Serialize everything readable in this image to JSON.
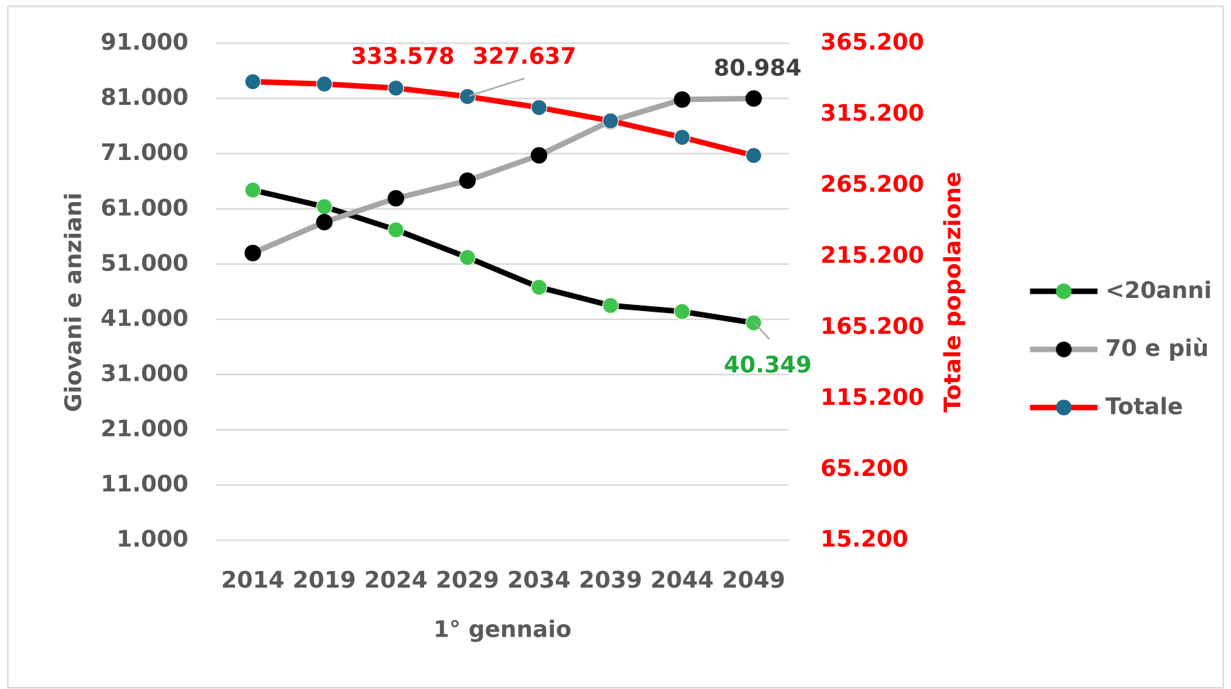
{
  "chart_data": {
    "type": "line",
    "x_label": "1° gennaio",
    "y_label": "Giovani e anziani",
    "y2_label": "Totale popolazione",
    "categories": [
      "2014",
      "2019",
      "2024",
      "2029",
      "2034",
      "2039",
      "2044",
      "2049"
    ],
    "ylim": [
      1000,
      91000
    ],
    "yticks": [
      {
        "value": 1000,
        "label": "1.000"
      },
      {
        "value": 11000,
        "label": "11.000"
      },
      {
        "value": 21000,
        "label": "21.000"
      },
      {
        "value": 31000,
        "label": "31.000"
      },
      {
        "value": 41000,
        "label": "41.000"
      },
      {
        "value": 51000,
        "label": "51.000"
      },
      {
        "value": 61000,
        "label": "61.000"
      },
      {
        "value": 71000,
        "label": "71.000"
      },
      {
        "value": 81000,
        "label": "81.000"
      },
      {
        "value": 91000,
        "label": "91.000"
      }
    ],
    "y2lim": [
      15200,
      365200
    ],
    "y2ticks": [
      {
        "value": 15200,
        "label": "15.200"
      },
      {
        "value": 65200,
        "label": "65.200"
      },
      {
        "value": 115200,
        "label": "115.200"
      },
      {
        "value": 165200,
        "label": "165.200"
      },
      {
        "value": 215200,
        "label": "215.200"
      },
      {
        "value": 265200,
        "label": "265.200"
      },
      {
        "value": 315200,
        "label": "315.200"
      },
      {
        "value": 365200,
        "label": "365.200"
      }
    ],
    "grid": true,
    "legend": "right",
    "series": [
      {
        "name": "<20anni",
        "color": "#000000",
        "marker_color": "#3ec44c",
        "label_color": "#1fa83a",
        "values": [
          64400,
          61400,
          57200,
          52200,
          46800,
          43500,
          42400,
          40349
        ],
        "value_labels": [
          null,
          null,
          null,
          null,
          null,
          null,
          null,
          "40.349"
        ]
      },
      {
        "name": "70 e più",
        "color": "#a6a6a6",
        "marker_color": "#000000",
        "label_color": "#404040",
        "values": [
          53000,
          58600,
          62900,
          66100,
          70700,
          76900,
          80800,
          80984
        ],
        "value_labels": [
          null,
          null,
          null,
          null,
          null,
          null,
          null,
          "80.984"
        ]
      },
      {
        "name": "Totale",
        "color": "#ff0000",
        "marker_color": "#1f6b8c",
        "label_color": "#ff0000",
        "axis": "y2",
        "values": [
          338100,
          336450,
          333578,
          327637,
          319900,
          310500,
          298900,
          286100
        ],
        "value_labels": [
          null,
          null,
          "333.578",
          "327.637",
          null,
          null,
          null,
          null
        ]
      }
    ]
  }
}
